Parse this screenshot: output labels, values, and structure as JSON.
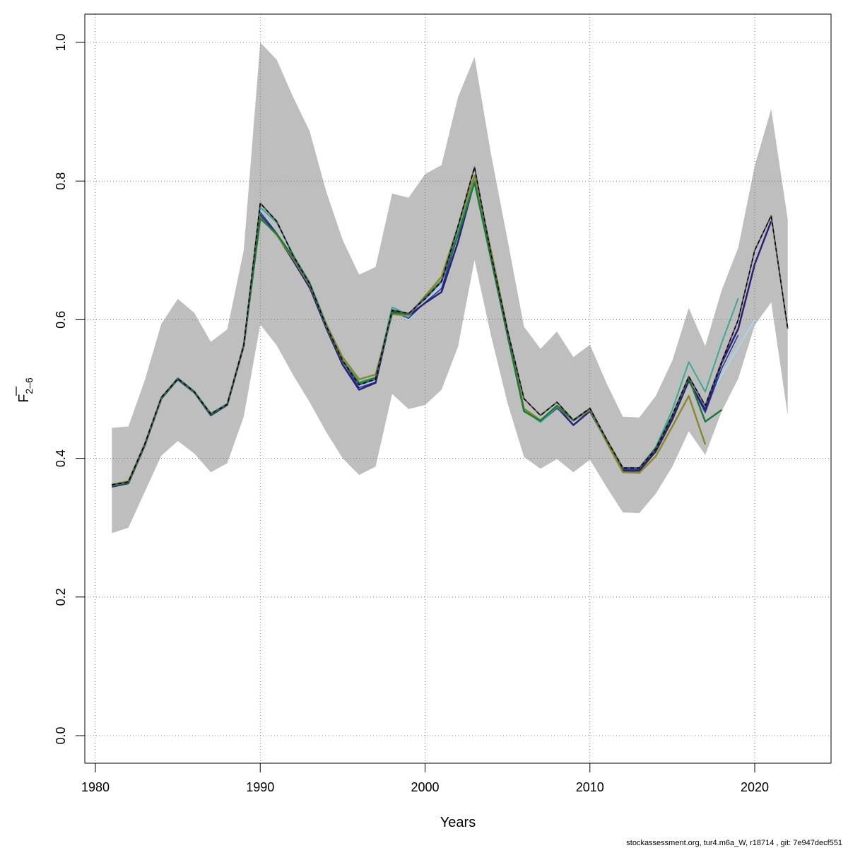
{
  "chart_data": {
    "type": "line",
    "xlabel": "Years",
    "ylabel_main": "F",
    "ylabel_sub": "2–6",
    "xlim": [
      1980,
      2025
    ],
    "ylim": [
      0.0,
      1.0
    ],
    "x_ticks": [
      1980,
      1990,
      2000,
      2010,
      2020
    ],
    "y_ticks": [
      0.0,
      0.2,
      0.4,
      0.6,
      0.8,
      1.0
    ],
    "y_tick_labels": [
      "0.0",
      "0.2",
      "0.4",
      "0.6",
      "0.8",
      "1.0"
    ],
    "grid": true,
    "footer": "stockassessment.org, tur4.m6a_W, r18714 , git: 7e947decf551",
    "band": {
      "color": "#bebebe",
      "x": [
        1981,
        1982,
        1983,
        1984,
        1985,
        1986,
        1987,
        1988,
        1989,
        1990,
        1991,
        1992,
        1993,
        1994,
        1995,
        1996,
        1997,
        1998,
        1999,
        2000,
        2001,
        2002,
        2003,
        2004,
        2005,
        2006,
        2007,
        2008,
        2009,
        2010,
        2011,
        2012,
        2013,
        2014,
        2015,
        2016,
        2017,
        2018,
        2019,
        2020,
        2021,
        2022
      ],
      "upper": [
        0.444,
        0.446,
        0.513,
        0.594,
        0.63,
        0.61,
        0.568,
        0.586,
        0.7,
        1.0,
        0.975,
        0.921,
        0.872,
        0.785,
        0.715,
        0.665,
        0.676,
        0.782,
        0.776,
        0.81,
        0.823,
        0.921,
        0.979,
        0.839,
        0.716,
        0.59,
        0.558,
        0.583,
        0.546,
        0.564,
        0.509,
        0.46,
        0.459,
        0.49,
        0.541,
        0.617,
        0.562,
        0.643,
        0.704,
        0.822,
        0.904,
        0.745
      ],
      "lower": [
        0.292,
        0.3,
        0.352,
        0.404,
        0.425,
        0.407,
        0.38,
        0.393,
        0.46,
        0.593,
        0.563,
        0.52,
        0.481,
        0.438,
        0.4,
        0.376,
        0.388,
        0.493,
        0.471,
        0.477,
        0.499,
        0.561,
        0.686,
        0.577,
        0.48,
        0.402,
        0.385,
        0.399,
        0.38,
        0.398,
        0.359,
        0.322,
        0.321,
        0.349,
        0.388,
        0.439,
        0.405,
        0.468,
        0.515,
        0.592,
        0.625,
        0.462
      ]
    },
    "series": [
      {
        "color": "#a3d8ec",
        "width": 2.0,
        "dashed": false,
        "x": [
          1981,
          1982,
          1983,
          1984,
          1985,
          1986,
          1987,
          1988,
          1989,
          1990,
          1991,
          1992,
          1993,
          1994,
          1995,
          1996,
          1997,
          1998,
          1999,
          2000,
          2001,
          2002,
          2003,
          2004,
          2005,
          2006,
          2007,
          2008,
          2009,
          2010,
          2011,
          2012,
          2013,
          2014,
          2015,
          2016,
          2017,
          2018,
          2019,
          2020
        ],
        "y": [
          0.361,
          0.365,
          0.42,
          0.487,
          0.512,
          0.493,
          0.461,
          0.476,
          0.562,
          0.76,
          0.74,
          0.69,
          0.65,
          0.59,
          0.54,
          0.505,
          0.512,
          0.615,
          0.6,
          0.625,
          0.65,
          0.72,
          0.795,
          0.69,
          0.58,
          0.474,
          0.451,
          0.472,
          0.452,
          0.466,
          0.424,
          0.384,
          0.384,
          0.413,
          0.462,
          0.515,
          0.478,
          0.52,
          0.56,
          0.6
        ]
      },
      {
        "color": "#2233aa",
        "width": 1.5,
        "dashed": false,
        "x": [
          1981,
          1982,
          1983,
          1984,
          1985,
          1986,
          1987,
          1988,
          1989,
          1990,
          1991,
          1992,
          1993,
          1994,
          1995,
          1996,
          1997,
          1998,
          1999,
          2000,
          2001,
          2002,
          2003,
          2004,
          2005,
          2006,
          2007,
          2008,
          2009,
          2010,
          2011,
          2012,
          2013,
          2014,
          2015,
          2016,
          2017,
          2018,
          2019
        ],
        "y": [
          0.36,
          0.365,
          0.42,
          0.487,
          0.513,
          0.494,
          0.463,
          0.477,
          0.563,
          0.755,
          0.725,
          0.685,
          0.645,
          0.592,
          0.54,
          0.502,
          0.51,
          0.612,
          0.602,
          0.625,
          0.645,
          0.722,
          0.8,
          0.69,
          0.578,
          0.472,
          0.452,
          0.472,
          0.455,
          0.468,
          0.426,
          0.384,
          0.384,
          0.412,
          0.46,
          0.512,
          0.466,
          0.53,
          0.578
        ]
      },
      {
        "color": "#2a1f7a",
        "width": 2.5,
        "dashed": false,
        "x": [
          1981,
          1982,
          1983,
          1984,
          1985,
          1986,
          1987,
          1988,
          1989,
          1990,
          1991,
          1992,
          1993,
          1994,
          1995,
          1996,
          1997,
          1998,
          1999,
          2000,
          2001,
          2002,
          2003,
          2004,
          2005,
          2006,
          2007,
          2008,
          2009,
          2010,
          2011,
          2012,
          2013,
          2014,
          2015,
          2016,
          2017,
          2018,
          2019,
          2020,
          2021
        ],
        "y": [
          0.359,
          0.364,
          0.419,
          0.486,
          0.514,
          0.495,
          0.462,
          0.477,
          0.562,
          0.751,
          0.723,
          0.685,
          0.647,
          0.588,
          0.535,
          0.499,
          0.509,
          0.612,
          0.606,
          0.624,
          0.64,
          0.712,
          0.8,
          0.69,
          0.578,
          0.471,
          0.454,
          0.474,
          0.448,
          0.468,
          0.425,
          0.382,
          0.382,
          0.41,
          0.456,
          0.512,
          0.47,
          0.538,
          0.587,
          0.68,
          0.742
        ]
      },
      {
        "color": "#3aaa90",
        "width": 2.0,
        "dashed": false,
        "x": [
          1981,
          1982,
          1983,
          1984,
          1985,
          1986,
          1987,
          1988,
          1989,
          1990,
          1991,
          1992,
          1993,
          1994,
          1995,
          1996,
          1997,
          1998,
          1999,
          2000,
          2001,
          2002,
          2003,
          2004,
          2005,
          2006,
          2007,
          2008,
          2009,
          2010,
          2011,
          2012,
          2013,
          2014,
          2015,
          2016,
          2017,
          2018,
          2019
        ],
        "y": [
          0.361,
          0.366,
          0.421,
          0.488,
          0.516,
          0.497,
          0.465,
          0.479,
          0.564,
          0.762,
          0.74,
          0.694,
          0.654,
          0.595,
          0.545,
          0.51,
          0.517,
          0.618,
          0.607,
          0.633,
          0.657,
          0.73,
          0.8,
          0.69,
          0.58,
          0.47,
          0.452,
          0.474,
          0.455,
          0.47,
          0.428,
          0.386,
          0.386,
          0.416,
          0.47,
          0.539,
          0.496,
          0.567,
          0.631
        ]
      },
      {
        "color": "#8a8a2a",
        "width": 2.5,
        "dashed": false,
        "x": [
          1981,
          1982,
          1983,
          1984,
          1985,
          1986,
          1987,
          1988,
          1989,
          1990,
          1991,
          1992,
          1993,
          1994,
          1995,
          1996,
          1997,
          1998,
          1999,
          2000,
          2001,
          2002,
          2003,
          2004,
          2005,
          2006,
          2007,
          2008,
          2009,
          2010,
          2011,
          2012,
          2013,
          2014,
          2015,
          2016,
          2017
        ],
        "y": [
          0.362,
          0.367,
          0.421,
          0.487,
          0.515,
          0.495,
          0.464,
          0.478,
          0.563,
          0.748,
          0.722,
          0.688,
          0.65,
          0.593,
          0.546,
          0.514,
          0.521,
          0.608,
          0.606,
          0.634,
          0.662,
          0.734,
          0.808,
          0.7,
          0.585,
          0.472,
          0.455,
          0.475,
          0.454,
          0.47,
          0.424,
          0.38,
          0.379,
          0.403,
          0.446,
          0.49,
          0.42
        ]
      },
      {
        "color": "#1a7a3a",
        "width": 2.5,
        "dashed": false,
        "x": [
          1981,
          1982,
          1983,
          1984,
          1985,
          1986,
          1987,
          1988,
          1989,
          1990,
          1991,
          1992,
          1993,
          1994,
          1995,
          1996,
          1997,
          1998,
          1999,
          2000,
          2001,
          2002,
          2003,
          2004,
          2005,
          2006,
          2007,
          2008,
          2009,
          2010,
          2011,
          2012,
          2013,
          2014,
          2015,
          2016,
          2017,
          2018
        ],
        "y": [
          0.36,
          0.365,
          0.42,
          0.486,
          0.515,
          0.496,
          0.463,
          0.478,
          0.563,
          0.746,
          0.724,
          0.69,
          0.652,
          0.59,
          0.54,
          0.508,
          0.516,
          0.61,
          0.608,
          0.632,
          0.655,
          0.722,
          0.798,
          0.688,
          0.578,
          0.468,
          0.454,
          0.476,
          0.455,
          0.472,
          0.427,
          0.386,
          0.386,
          0.415,
          0.462,
          0.516,
          0.453,
          0.47
        ]
      },
      {
        "color": "#555555",
        "width": 2.0,
        "dashed": false,
        "x": [
          1981,
          1982,
          1983,
          1984,
          1985,
          1986,
          1987,
          1988,
          1989,
          1990,
          1991,
          1992,
          1993,
          1994,
          1995,
          1996,
          1997,
          1998,
          1999,
          2000,
          2001,
          2002,
          2003,
          2004,
          2005,
          2006,
          2007,
          2008,
          2009,
          2010,
          2011,
          2012,
          2013,
          2014,
          2015,
          2016,
          2017,
          2018,
          2019,
          2020,
          2021,
          2022
        ],
        "y": [
          0.362,
          0.366,
          0.421,
          0.488,
          0.515,
          0.496,
          0.464,
          0.478,
          0.563,
          0.768,
          0.742,
          0.692,
          0.652,
          0.591,
          0.541,
          0.506,
          0.514,
          0.614,
          0.609,
          0.63,
          0.655,
          0.735,
          0.82,
          0.695,
          0.585,
          0.486,
          0.462,
          0.481,
          0.455,
          0.472,
          0.428,
          0.386,
          0.386,
          0.413,
          0.462,
          0.518,
          0.476,
          0.54,
          0.6,
          0.7,
          0.75,
          0.587
        ]
      },
      {
        "color": "#000000",
        "width": 1.5,
        "dashed": true,
        "x": [
          1981,
          1982,
          1983,
          1984,
          1985,
          1986,
          1987,
          1988,
          1989,
          1990,
          1991,
          1992,
          1993,
          1994,
          1995,
          1996,
          1997,
          1998,
          1999,
          2000,
          2001,
          2002,
          2003,
          2004,
          2005,
          2006,
          2007,
          2008,
          2009,
          2010,
          2011,
          2012,
          2013,
          2014,
          2015,
          2016,
          2017,
          2018,
          2019,
          2020,
          2021,
          2022
        ],
        "y": [
          0.362,
          0.366,
          0.421,
          0.488,
          0.515,
          0.496,
          0.464,
          0.478,
          0.563,
          0.768,
          0.742,
          0.692,
          0.652,
          0.591,
          0.541,
          0.506,
          0.514,
          0.614,
          0.609,
          0.63,
          0.655,
          0.735,
          0.82,
          0.695,
          0.585,
          0.486,
          0.462,
          0.481,
          0.455,
          0.472,
          0.428,
          0.386,
          0.386,
          0.413,
          0.462,
          0.518,
          0.476,
          0.54,
          0.6,
          0.7,
          0.75,
          0.587
        ]
      }
    ]
  }
}
